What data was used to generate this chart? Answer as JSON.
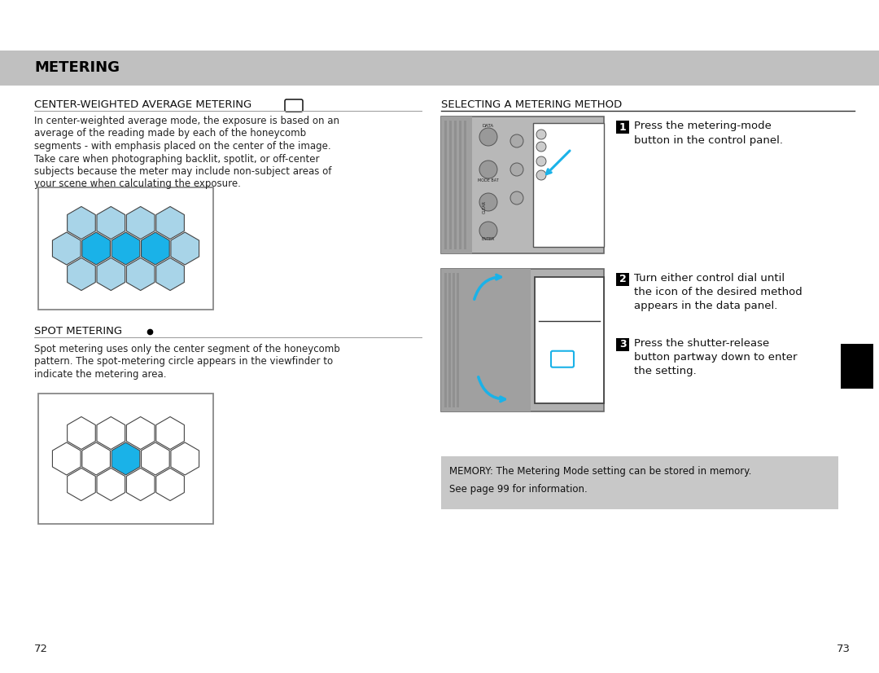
{
  "bg_color": "#ffffff",
  "header_color": "#c0c0c0",
  "header_text": "METERING",
  "left_title1": "CENTER-WEIGHTED AVERAGE METERING",
  "left_body1_lines": [
    "In center-weighted average mode, the exposure is based on an",
    "average of the reading made by each of the honeycomb",
    "segments - with emphasis placed on the center of the image.",
    "Take care when photographing backlit, spotlit, or off-center",
    "subjects because the meter may include non-subject areas of",
    "your scene when calculating the exposure."
  ],
  "left_title2": "SPOT METERING",
  "left_body2_lines": [
    "Spot metering uses only the center segment of the honeycomb",
    "pattern. The spot-metering circle appears in the viewfinder to",
    "indicate the metering area."
  ],
  "right_title": "SELECTING A METERING METHOD",
  "step1_lines": [
    "Press the metering-mode",
    "button in the control panel."
  ],
  "step2_lines": [
    "Turn either control dial until",
    "the icon of the desired method",
    "appears in the data panel."
  ],
  "step3_lines": [
    "Press the shutter-release",
    "button partway down to enter",
    "the setting."
  ],
  "memory_lines": [
    "MEMORY: The Metering Mode setting can be stored in memory.",
    "See page 99 for information."
  ],
  "page_left": "72",
  "page_right": "73",
  "hex_light_blue": "#a8d4e8",
  "hex_dark_blue": "#1ab2e8",
  "hex_outline": "#444444",
  "hex_white": "#ffffff",
  "box_border": "#888888",
  "cam_gray": "#b8b8b8",
  "cam_dark": "#888888"
}
